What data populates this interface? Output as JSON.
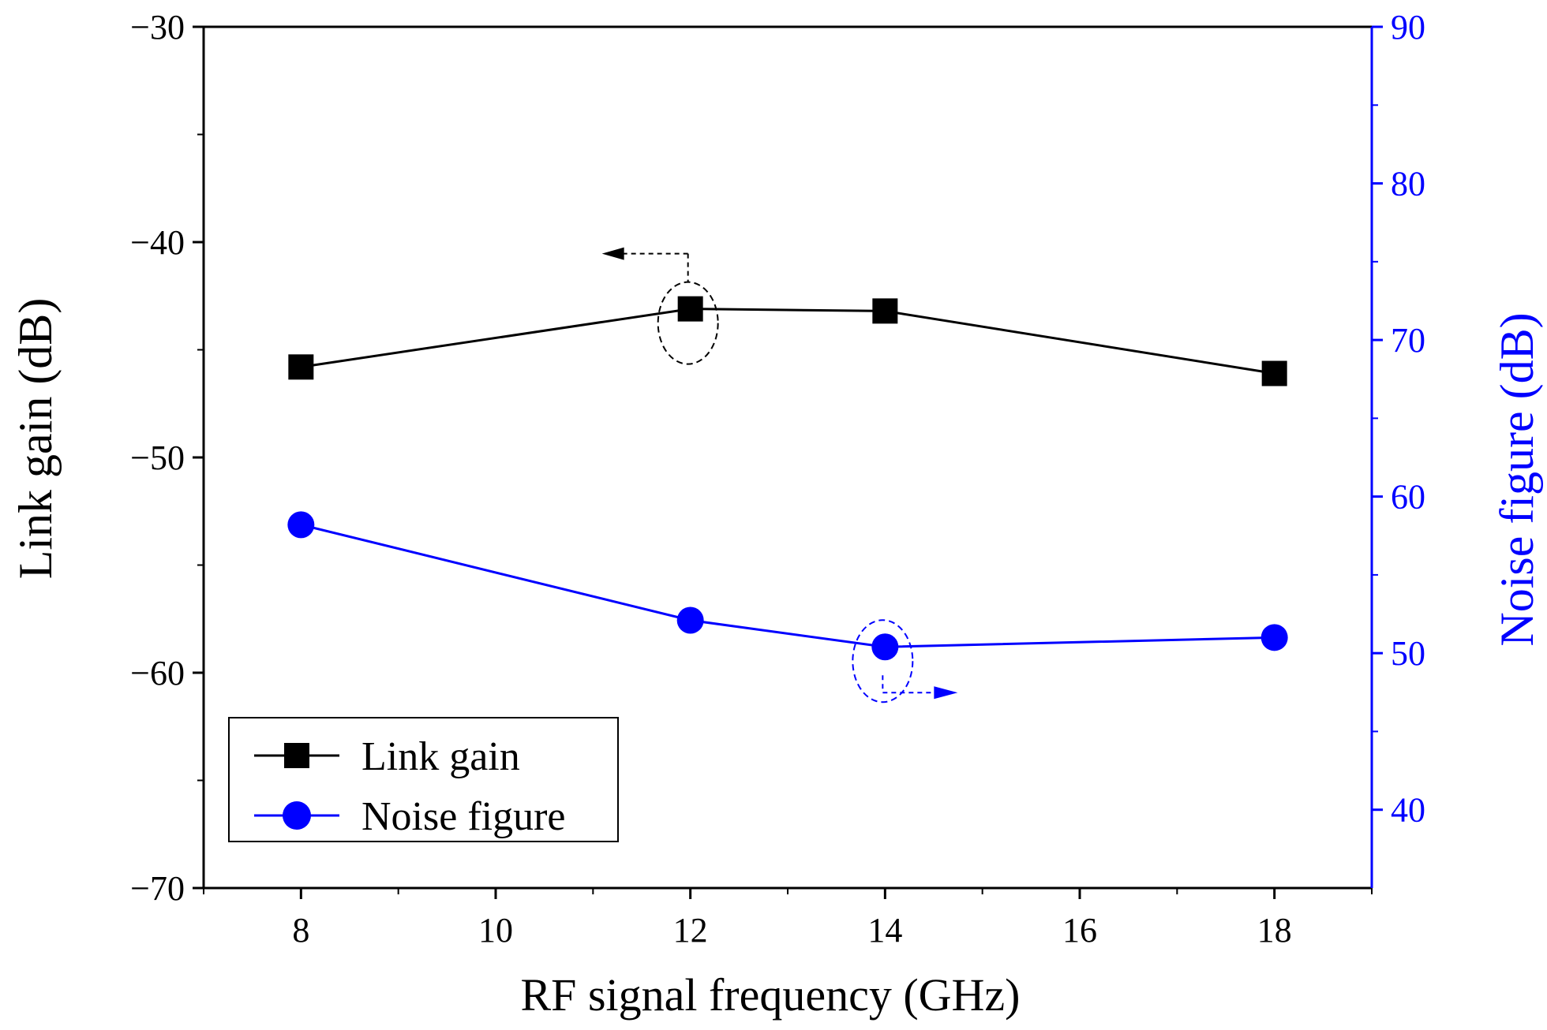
{
  "chart_data": {
    "type": "line",
    "title": "",
    "xlabel": "RF signal frequency (GHz)",
    "ylabel_left": "Link gain (dB)",
    "ylabel_right": "Noise figure (dB)",
    "xlim": [
      7,
      19
    ],
    "ylim_left": [
      -70,
      -30
    ],
    "ylim_right": [
      35,
      90
    ],
    "x_ticks": [
      "8",
      "10",
      "12",
      "14",
      "16",
      "18"
    ],
    "y_left_ticks": [
      "-30",
      "-40",
      "-50",
      "-60",
      "-70"
    ],
    "y_right_ticks": [
      "90",
      "80",
      "70",
      "60",
      "50",
      "40"
    ],
    "grid": false,
    "legend_position": "bottom-left",
    "series": [
      {
        "name": "Link gain",
        "axis": "left",
        "marker": "square",
        "color": "#000000",
        "x": [
          8,
          12,
          14,
          18
        ],
        "values": [
          -45.8,
          -43.1,
          -43.2,
          -46.1
        ]
      },
      {
        "name": "Noise figure",
        "axis": "right",
        "marker": "circle",
        "color": "#0000ff",
        "x": [
          8,
          12,
          14,
          18
        ],
        "values": [
          58.2,
          52.1,
          50.4,
          51.0
        ]
      }
    ],
    "annotations": [
      {
        "series": "Link gain",
        "x": 12,
        "indicates_axis": "left"
      },
      {
        "series": "Noise figure",
        "x": 14,
        "indicates_axis": "right"
      }
    ]
  }
}
